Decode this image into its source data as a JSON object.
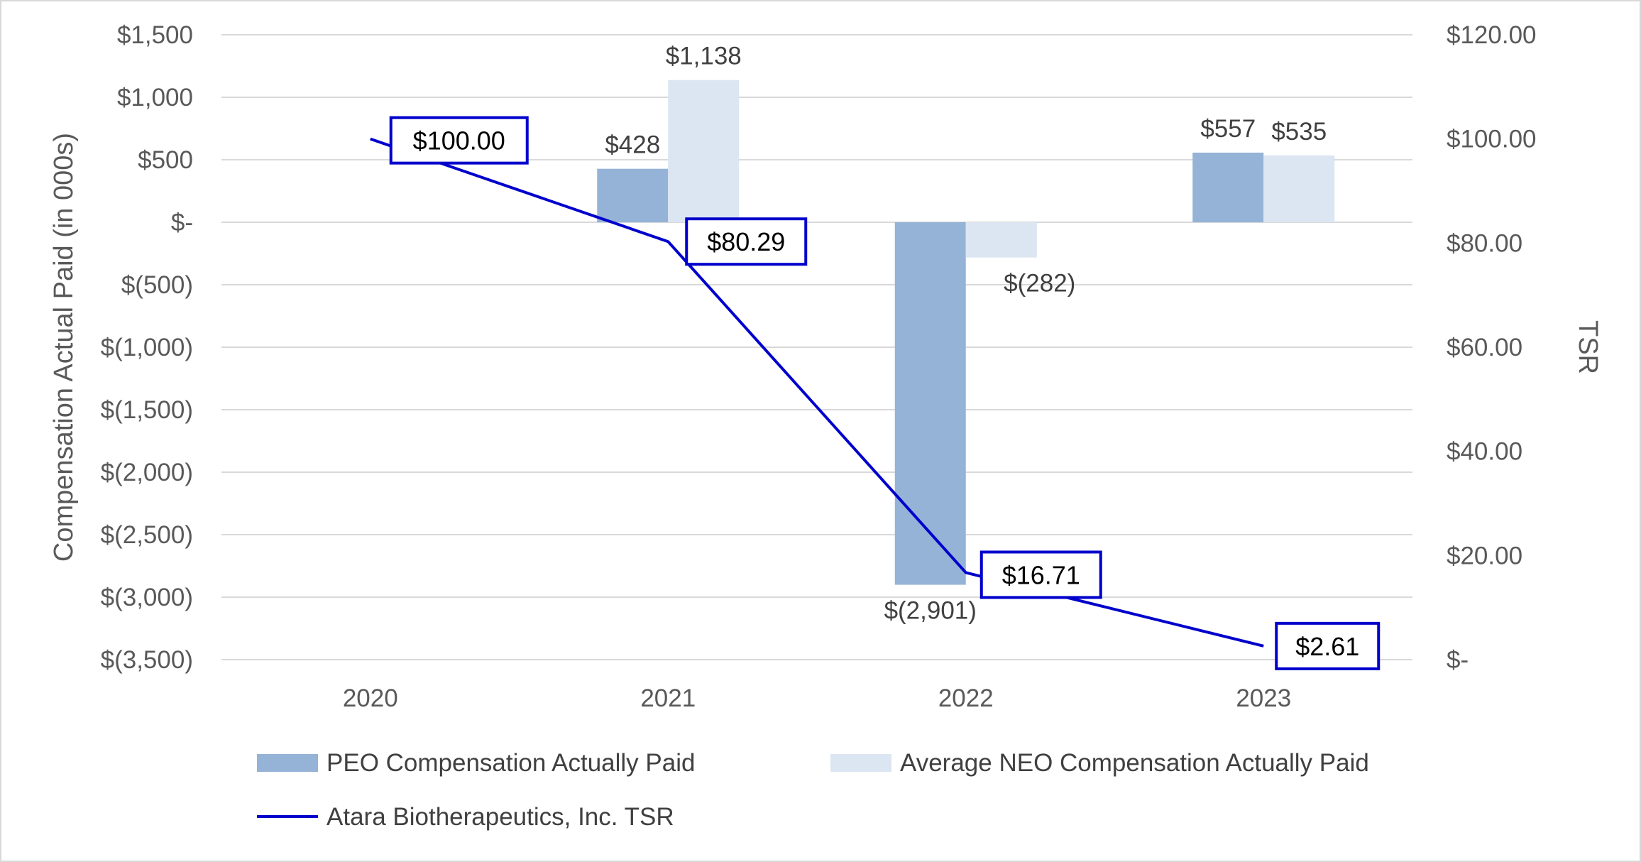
{
  "chart_data": {
    "type": "bar",
    "categories": [
      "2020",
      "2021",
      "2022",
      "2023"
    ],
    "series": [
      {
        "name": "PEO Compensation Actually Paid",
        "kind": "bar",
        "axis": "left",
        "color": "#95b3d7",
        "values": [
          null,
          428,
          -2901,
          557
        ],
        "labels": [
          null,
          "$428",
          "$(2,901)",
          "$557"
        ]
      },
      {
        "name": "Average NEO Compensation Actually Paid",
        "kind": "bar",
        "axis": "left",
        "color": "#dce6f2",
        "values": [
          null,
          1138,
          -282,
          535
        ],
        "labels": [
          null,
          "$1,138",
          "$(282)",
          "$535"
        ]
      },
      {
        "name": "Atara Biotherapeutics, Inc. TSR",
        "kind": "line",
        "axis": "right",
        "color": "#0000cc",
        "values": [
          100.0,
          80.29,
          16.71,
          2.61
        ],
        "labels": [
          "$100.00",
          "$80.29",
          "$16.71",
          "$2.61"
        ]
      }
    ],
    "ylabel": "Compensation Actual Paid (in 000s)",
    "ylim": [
      -3500,
      1500
    ],
    "yticks": [
      1500,
      1000,
      500,
      0,
      -500,
      -1000,
      -1500,
      -2000,
      -2500,
      -3000,
      -3500
    ],
    "ytick_labels": [
      "$1,500",
      "$1,000",
      "$500",
      "$-",
      "$(500)",
      "$(1,000)",
      "$(1,500)",
      "$(2,000)",
      "$(2,500)",
      "$(3,000)",
      "$(3,500)"
    ],
    "y2label": "TSR",
    "y2lim": [
      0,
      120
    ],
    "y2ticks": [
      120,
      100,
      80,
      60,
      40,
      20,
      0
    ],
    "y2tick_labels": [
      "$120.00",
      "$100.00",
      "$80.00",
      "$60.00",
      "$40.00",
      "$20.00",
      "$-"
    ],
    "grid": true,
    "legend_position": "bottom"
  }
}
